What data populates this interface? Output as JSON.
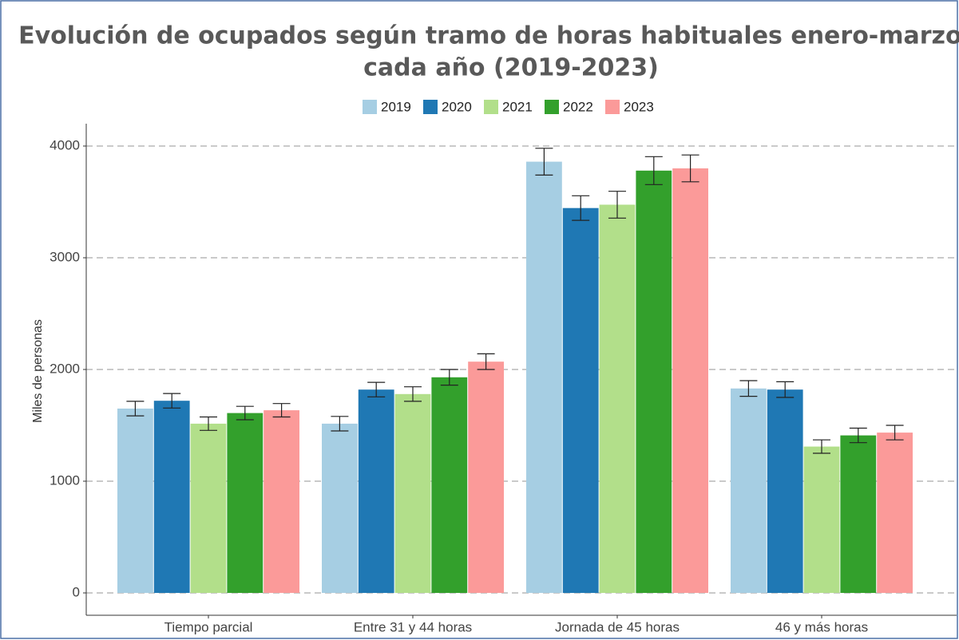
{
  "chart_data": {
    "type": "bar",
    "title": [
      "Evolución de ocupados según tramo de horas habituales enero-marzo de",
      "cada año (2019-2023)"
    ],
    "y_label": "Miles de personas",
    "categories": [
      "Tiempo parcial",
      "Entre 31 y 44 horas",
      "Jornada de 45 horas",
      "46 y más horas"
    ],
    "series": [
      {
        "name": "2019",
        "color": "#a6cee3",
        "values": [
          1650,
          1515,
          3860,
          1830
        ],
        "errors": [
          65,
          65,
          120,
          70
        ]
      },
      {
        "name": "2020",
        "color": "#1f78b4",
        "values": [
          1720,
          1820,
          3445,
          1820
        ],
        "errors": [
          65,
          65,
          110,
          70
        ]
      },
      {
        "name": "2021",
        "color": "#b2df8a",
        "values": [
          1515,
          1780,
          3475,
          1310
        ],
        "errors": [
          60,
          65,
          120,
          60
        ]
      },
      {
        "name": "2022",
        "color": "#33a02c",
        "values": [
          1610,
          1930,
          3780,
          1410
        ],
        "errors": [
          60,
          70,
          125,
          65
        ]
      },
      {
        "name": "2023",
        "color": "#fb9a99",
        "values": [
          1635,
          2070,
          3800,
          1435
        ],
        "errors": [
          60,
          70,
          120,
          65
        ]
      }
    ],
    "ylim": [
      -200,
      4200
    ],
    "yticks": [
      0,
      1000,
      2000,
      3000,
      4000
    ],
    "grid": true,
    "legend": "top"
  }
}
